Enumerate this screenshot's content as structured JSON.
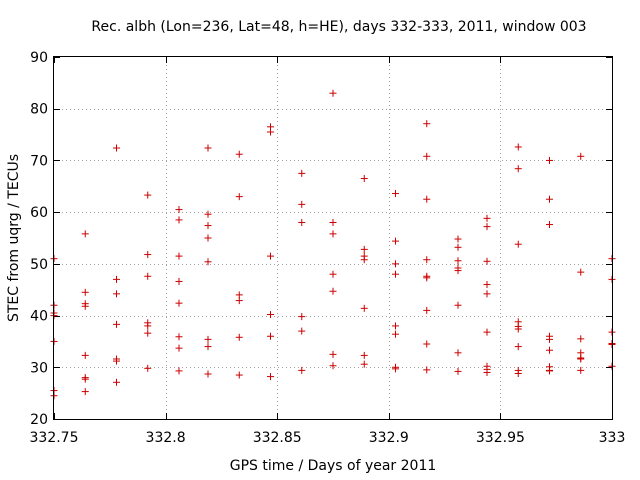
{
  "chart_data": {
    "type": "scatter",
    "title": "Rec. albh (Lon=236, Lat=48, h=HE), days 332-333, 2011, window 003",
    "xlabel": "GPS time / Days of year 2011",
    "ylabel": "STEC from uqrg / TECUs",
    "xlim": [
      332.75,
      333
    ],
    "ylim": [
      20,
      90
    ],
    "xticks": [
      332.75,
      332.8,
      332.85,
      332.9,
      332.95,
      333
    ],
    "xtick_labels": [
      "332.75",
      "332.8",
      "332.85",
      "332.9",
      "332.95",
      "333"
    ],
    "yticks": [
      20,
      30,
      40,
      50,
      60,
      70,
      80,
      90
    ],
    "ytick_labels": [
      "20",
      "30",
      "40",
      "50",
      "60",
      "70",
      "80",
      "90"
    ],
    "grid": true,
    "legend": "none",
    "color": "#cc0000",
    "marker": "plus",
    "series": [
      {
        "x": [
          332.75,
          332.75,
          332.75,
          332.75,
          332.75,
          332.75,
          332.75,
          332.764,
          332.764,
          332.764,
          332.764,
          332.764,
          332.764,
          332.764,
          332.764,
          332.778,
          332.778,
          332.778,
          332.778,
          332.778,
          332.778,
          332.778,
          332.792,
          332.792,
          332.792,
          332.792,
          332.792,
          332.792,
          332.792,
          332.806,
          332.806,
          332.806,
          332.806,
          332.806,
          332.806,
          332.806,
          332.806,
          332.819,
          332.819,
          332.819,
          332.819,
          332.819,
          332.819,
          332.819,
          332.819,
          332.833,
          332.833,
          332.833,
          332.833,
          332.833,
          332.833,
          332.847,
          332.847,
          332.847,
          332.847,
          332.847,
          332.847,
          332.861,
          332.861,
          332.861,
          332.861,
          332.861,
          332.861,
          332.875,
          332.875,
          332.875,
          332.875,
          332.875,
          332.875,
          332.875,
          332.889,
          332.889,
          332.889,
          332.889,
          332.889,
          332.889,
          332.889,
          332.903,
          332.903,
          332.903,
          332.903,
          332.903,
          332.903,
          332.903,
          332.903,
          332.917,
          332.917,
          332.917,
          332.917,
          332.917,
          332.917,
          332.917,
          332.917,
          332.917,
          332.931,
          332.931,
          332.931,
          332.931,
          332.931,
          332.931,
          332.931,
          332.931,
          332.944,
          332.944,
          332.944,
          332.944,
          332.944,
          332.944,
          332.944,
          332.944,
          332.944,
          332.958,
          332.958,
          332.958,
          332.958,
          332.958,
          332.958,
          332.958,
          332.958,
          332.958,
          332.972,
          332.972,
          332.972,
          332.972,
          332.972,
          332.972,
          332.972,
          332.972,
          332.972,
          332.986,
          332.986,
          332.986,
          332.986,
          332.986,
          332.986,
          332.986,
          333.0,
          333.0,
          333.0,
          333.0,
          333.0,
          333.0
        ],
        "y": [
          51.0,
          42.0,
          40.5,
          40.0,
          35.0,
          25.5,
          24.5,
          55.8,
          44.5,
          42.3,
          41.8,
          32.3,
          28.0,
          27.7,
          25.3,
          72.4,
          47.0,
          44.2,
          38.3,
          31.6,
          31.2,
          27.1,
          63.3,
          51.8,
          47.6,
          38.6,
          38.0,
          36.6,
          29.8,
          60.5,
          58.5,
          51.5,
          46.6,
          42.4,
          35.9,
          33.7,
          29.3,
          72.4,
          59.6,
          57.4,
          55.0,
          50.4,
          35.4,
          34.0,
          28.7,
          71.2,
          63.0,
          44.0,
          42.9,
          35.8,
          28.5,
          76.5,
          75.5,
          51.5,
          40.2,
          36.0,
          28.2,
          67.5,
          61.5,
          58.0,
          39.8,
          37.0,
          29.4,
          83.0,
          58.0,
          55.8,
          48.0,
          44.7,
          32.5,
          30.3,
          66.5,
          52.8,
          51.5,
          50.8,
          41.4,
          32.3,
          30.6,
          63.6,
          54.4,
          50.0,
          48.0,
          38.0,
          36.4,
          30.0,
          29.7,
          77.1,
          70.8,
          62.5,
          50.8,
          47.6,
          47.3,
          41.0,
          34.5,
          29.5,
          54.8,
          53.2,
          50.6,
          49.2,
          48.7,
          42.0,
          32.8,
          29.2,
          58.8,
          57.2,
          50.5,
          46.0,
          44.2,
          36.8,
          30.2,
          29.6,
          29.0,
          72.6,
          68.4,
          53.8,
          38.8,
          37.9,
          37.4,
          34.0,
          29.4,
          28.8,
          70.0,
          62.5,
          57.6,
          36.0,
          35.4,
          33.3,
          30.1,
          29.4,
          29.3,
          70.8,
          48.4,
          35.5,
          32.8,
          31.8,
          31.6,
          29.4,
          51.0,
          47.0,
          36.8,
          34.6,
          34.4,
          30.2
        ]
      }
    ]
  }
}
